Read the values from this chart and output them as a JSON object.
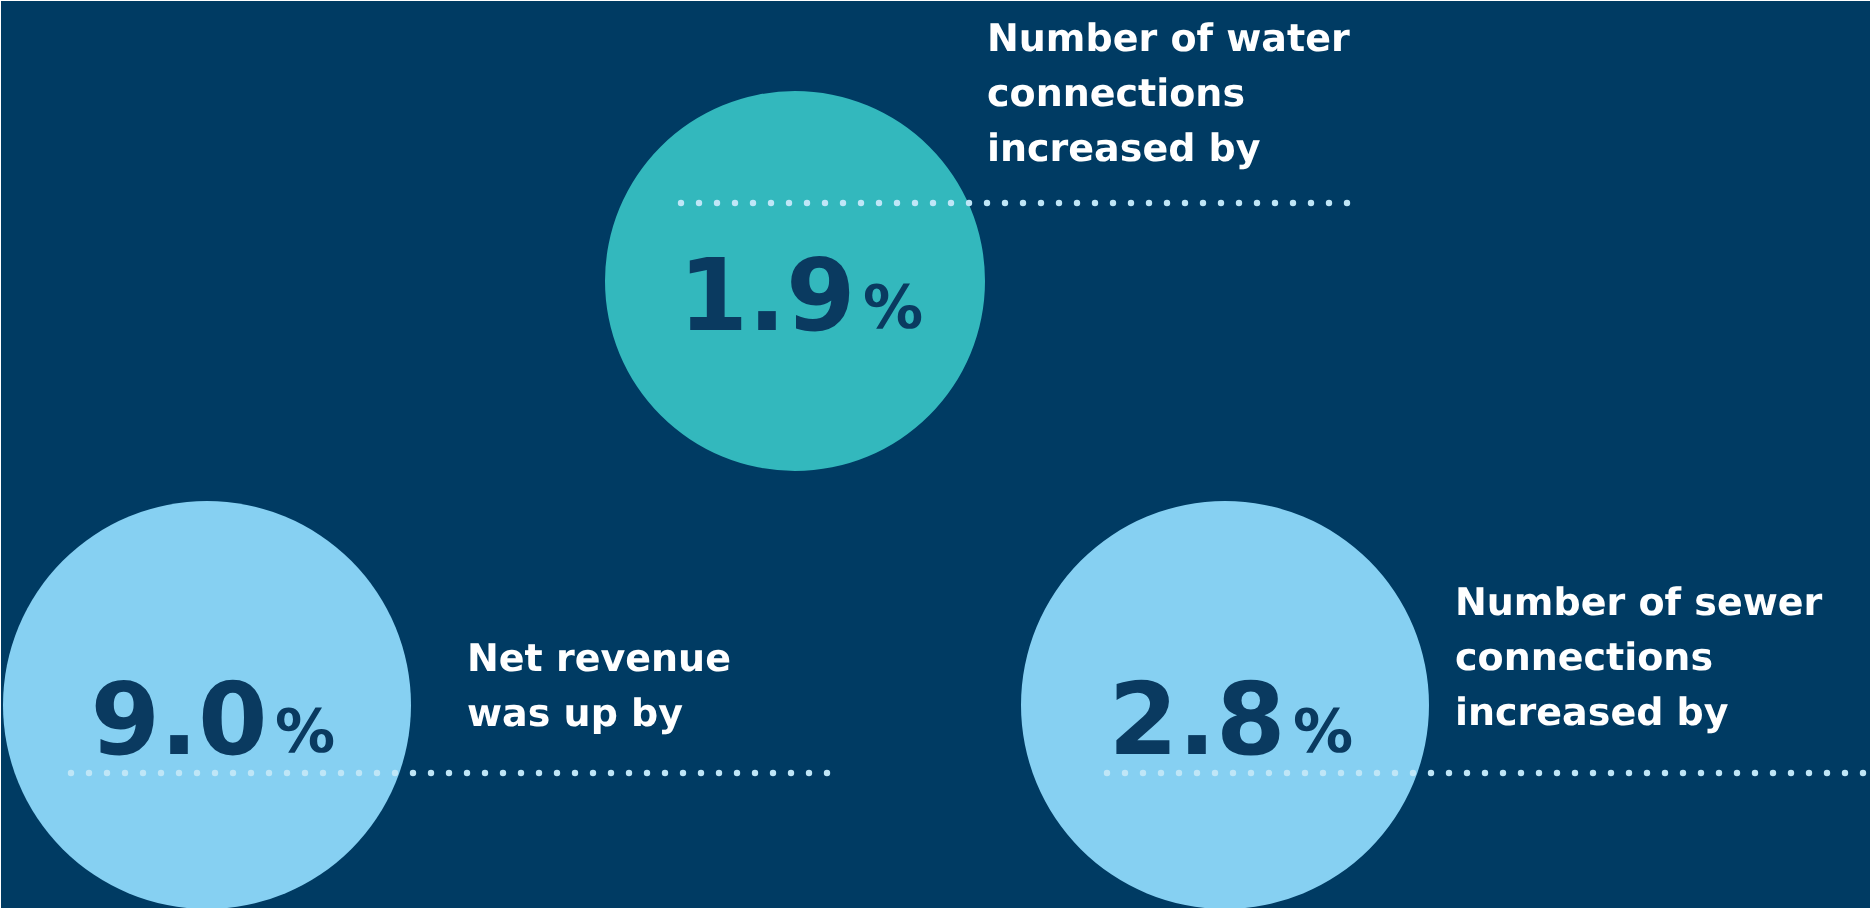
{
  "chart_data": {
    "type": "other",
    "categories": [
      "Number of water\nconnections\nincreased by",
      "Net revenue\nwas up by",
      "Number of sewer\nconnections\nincreased by"
    ],
    "values": [
      1.9,
      9.0,
      2.8
    ],
    "value_labels": [
      "1.9%",
      "9.0%",
      "2.8%"
    ],
    "colors": [
      "#33b8bd",
      "#86d0f2",
      "#86d0f2"
    ]
  }
}
